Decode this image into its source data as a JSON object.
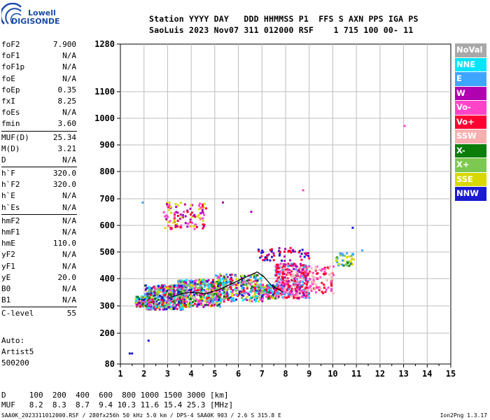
{
  "logo": {
    "line1": "Lowell",
    "line2": "DIGISONDE"
  },
  "header": {
    "row1": "Station YYYY DAY   DDD HHMMSS P1  FFS S AXN PPS IGA PS",
    "row2": "SaoLuis 2023 Nov07 311 012000 RSF    1 715 100 00- 11"
  },
  "params": {
    "group1": [
      {
        "label": "foF2",
        "value": "7.900"
      },
      {
        "label": "foF1",
        "value": "N/A"
      },
      {
        "label": "foF1p",
        "value": "N/A"
      },
      {
        "label": "foE",
        "value": "N/A"
      },
      {
        "label": "foEp",
        "value": "0.35"
      },
      {
        "label": "fxI",
        "value": "8.25"
      },
      {
        "label": "foEs",
        "value": "N/A"
      },
      {
        "label": "fmin",
        "value": "3.60"
      }
    ],
    "group2": [
      {
        "label": "MUF(D)",
        "value": "25.34"
      },
      {
        "label": "M(D)",
        "value": "3.21"
      },
      {
        "label": "D",
        "value": "N/A"
      }
    ],
    "group3": [
      {
        "label": "h`F",
        "value": "320.0"
      },
      {
        "label": "h`F2",
        "value": "320.0"
      },
      {
        "label": "h`E",
        "value": "N/A"
      },
      {
        "label": "h`Es",
        "value": "N/A"
      }
    ],
    "group4": [
      {
        "label": "hmF2",
        "value": "N/A"
      },
      {
        "label": "hmF1",
        "value": "N/A"
      },
      {
        "label": "hmE",
        "value": "110.0"
      },
      {
        "label": "yF2",
        "value": "N/A"
      },
      {
        "label": "yF1",
        "value": "N/A"
      },
      {
        "label": "yE",
        "value": "20.0"
      },
      {
        "label": "B0",
        "value": "N/A"
      },
      {
        "label": "B1",
        "value": "N/A"
      }
    ],
    "group5": [
      {
        "label": "C-level",
        "value": "55"
      }
    ]
  },
  "autoscaler": {
    "line1": "Auto:",
    "line2": "Artist5",
    "line3": "500200"
  },
  "legend": [
    {
      "label": "NoVal",
      "color": "#a8a8a8"
    },
    {
      "label": "NNE",
      "color": "#00e5ff"
    },
    {
      "label": "E",
      "color": "#3ea6ff"
    },
    {
      "label": "W",
      "color": "#b000b0"
    },
    {
      "label": "Vo-",
      "color": "#ff44c8"
    },
    {
      "label": "Vo+",
      "color": "#ff0033"
    },
    {
      "label": "SSW",
      "color": "#f6b0b0"
    },
    {
      "label": "X-",
      "color": "#0a7d0a"
    },
    {
      "label": "X+",
      "color": "#7cc850"
    },
    {
      "label": "SSE",
      "color": "#d8d800"
    },
    {
      "label": "NNW",
      "color": "#1a1ad0"
    }
  ],
  "muf_table": {
    "row1": "D     100  200  400  600  800 1000 1500 3000 [km]",
    "row2": "MUF   8.2  8.3  8.7  9.4 10.3 11.6 15.4 25.3 [MHz]"
  },
  "footer": {
    "left": "SAA0K_2023311012000.RSF / 280fx256h 50 kHz 5.0 km / DPS-4 SAA0K 903 / 2.6 S 315.8 E",
    "right": "Ion2Png 1.3.17"
  },
  "chart_data": {
    "type": "scatter",
    "title": "",
    "xlabel": "",
    "ylabel": "",
    "xlim": [
      1,
      15
    ],
    "ylim": [
      80,
      1280
    ],
    "x_ticks": [
      1,
      2,
      3,
      4,
      5,
      6,
      7,
      8,
      9,
      10,
      11,
      12,
      13,
      14,
      15
    ],
    "y_ticks": [
      80,
      200,
      300,
      400,
      500,
      600,
      700,
      800,
      900,
      1000,
      1100,
      1280
    ],
    "y_scale": "virtual-height (nonlinear)",
    "grid": true,
    "trace": {
      "name": "",
      "color": "#000000",
      "x": [
        3.1,
        3.6,
        4.0,
        4.6,
        5.2,
        5.8,
        6.3,
        6.8,
        7.1,
        7.4,
        7.7,
        7.9
      ],
      "y": [
        330,
        345,
        350,
        345,
        360,
        385,
        405,
        425,
        405,
        375,
        360,
        350
      ]
    }
  }
}
